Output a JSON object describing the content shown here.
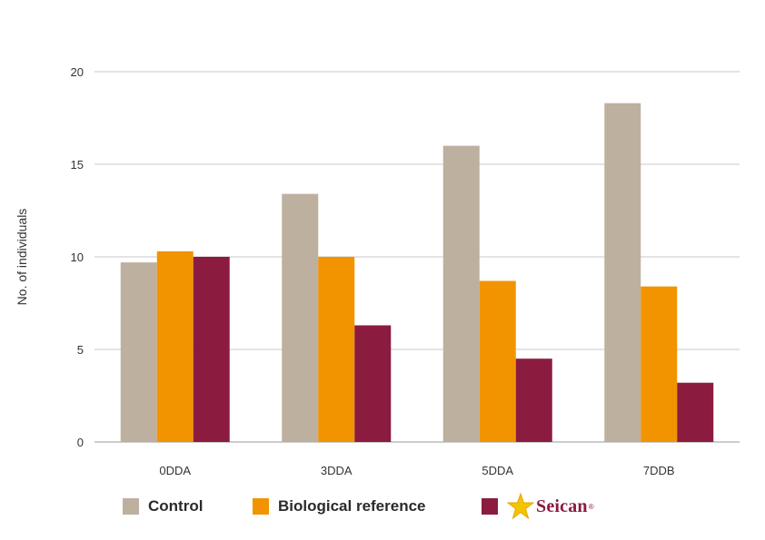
{
  "chart_data": {
    "type": "bar",
    "categories": [
      "0DDA",
      "3DDA",
      "5DDA",
      "7DDB"
    ],
    "series": [
      {
        "name": "Control",
        "color": "#bdb09f",
        "values": [
          9.7,
          13.4,
          16.0,
          18.3
        ]
      },
      {
        "name": "Biological reference",
        "color": "#f29400",
        "values": [
          10.3,
          10.0,
          8.7,
          8.4
        ]
      },
      {
        "name": "Seican",
        "color": "#8b1c3f",
        "values": [
          10.0,
          6.3,
          4.5,
          3.2
        ]
      }
    ],
    "ylabel": "No. of individuals",
    "ylim": [
      0,
      20
    ],
    "yticks": [
      0,
      5,
      10,
      15,
      20
    ],
    "grid": true,
    "legend_position": "bottom"
  },
  "legend": {
    "control": "Control",
    "biological_reference": "Biological reference",
    "seican_logo": "Seican",
    "seican_logo_mark": "®"
  },
  "icons": {
    "logo_star": "star-icon",
    "star_color": "#f5c400"
  }
}
